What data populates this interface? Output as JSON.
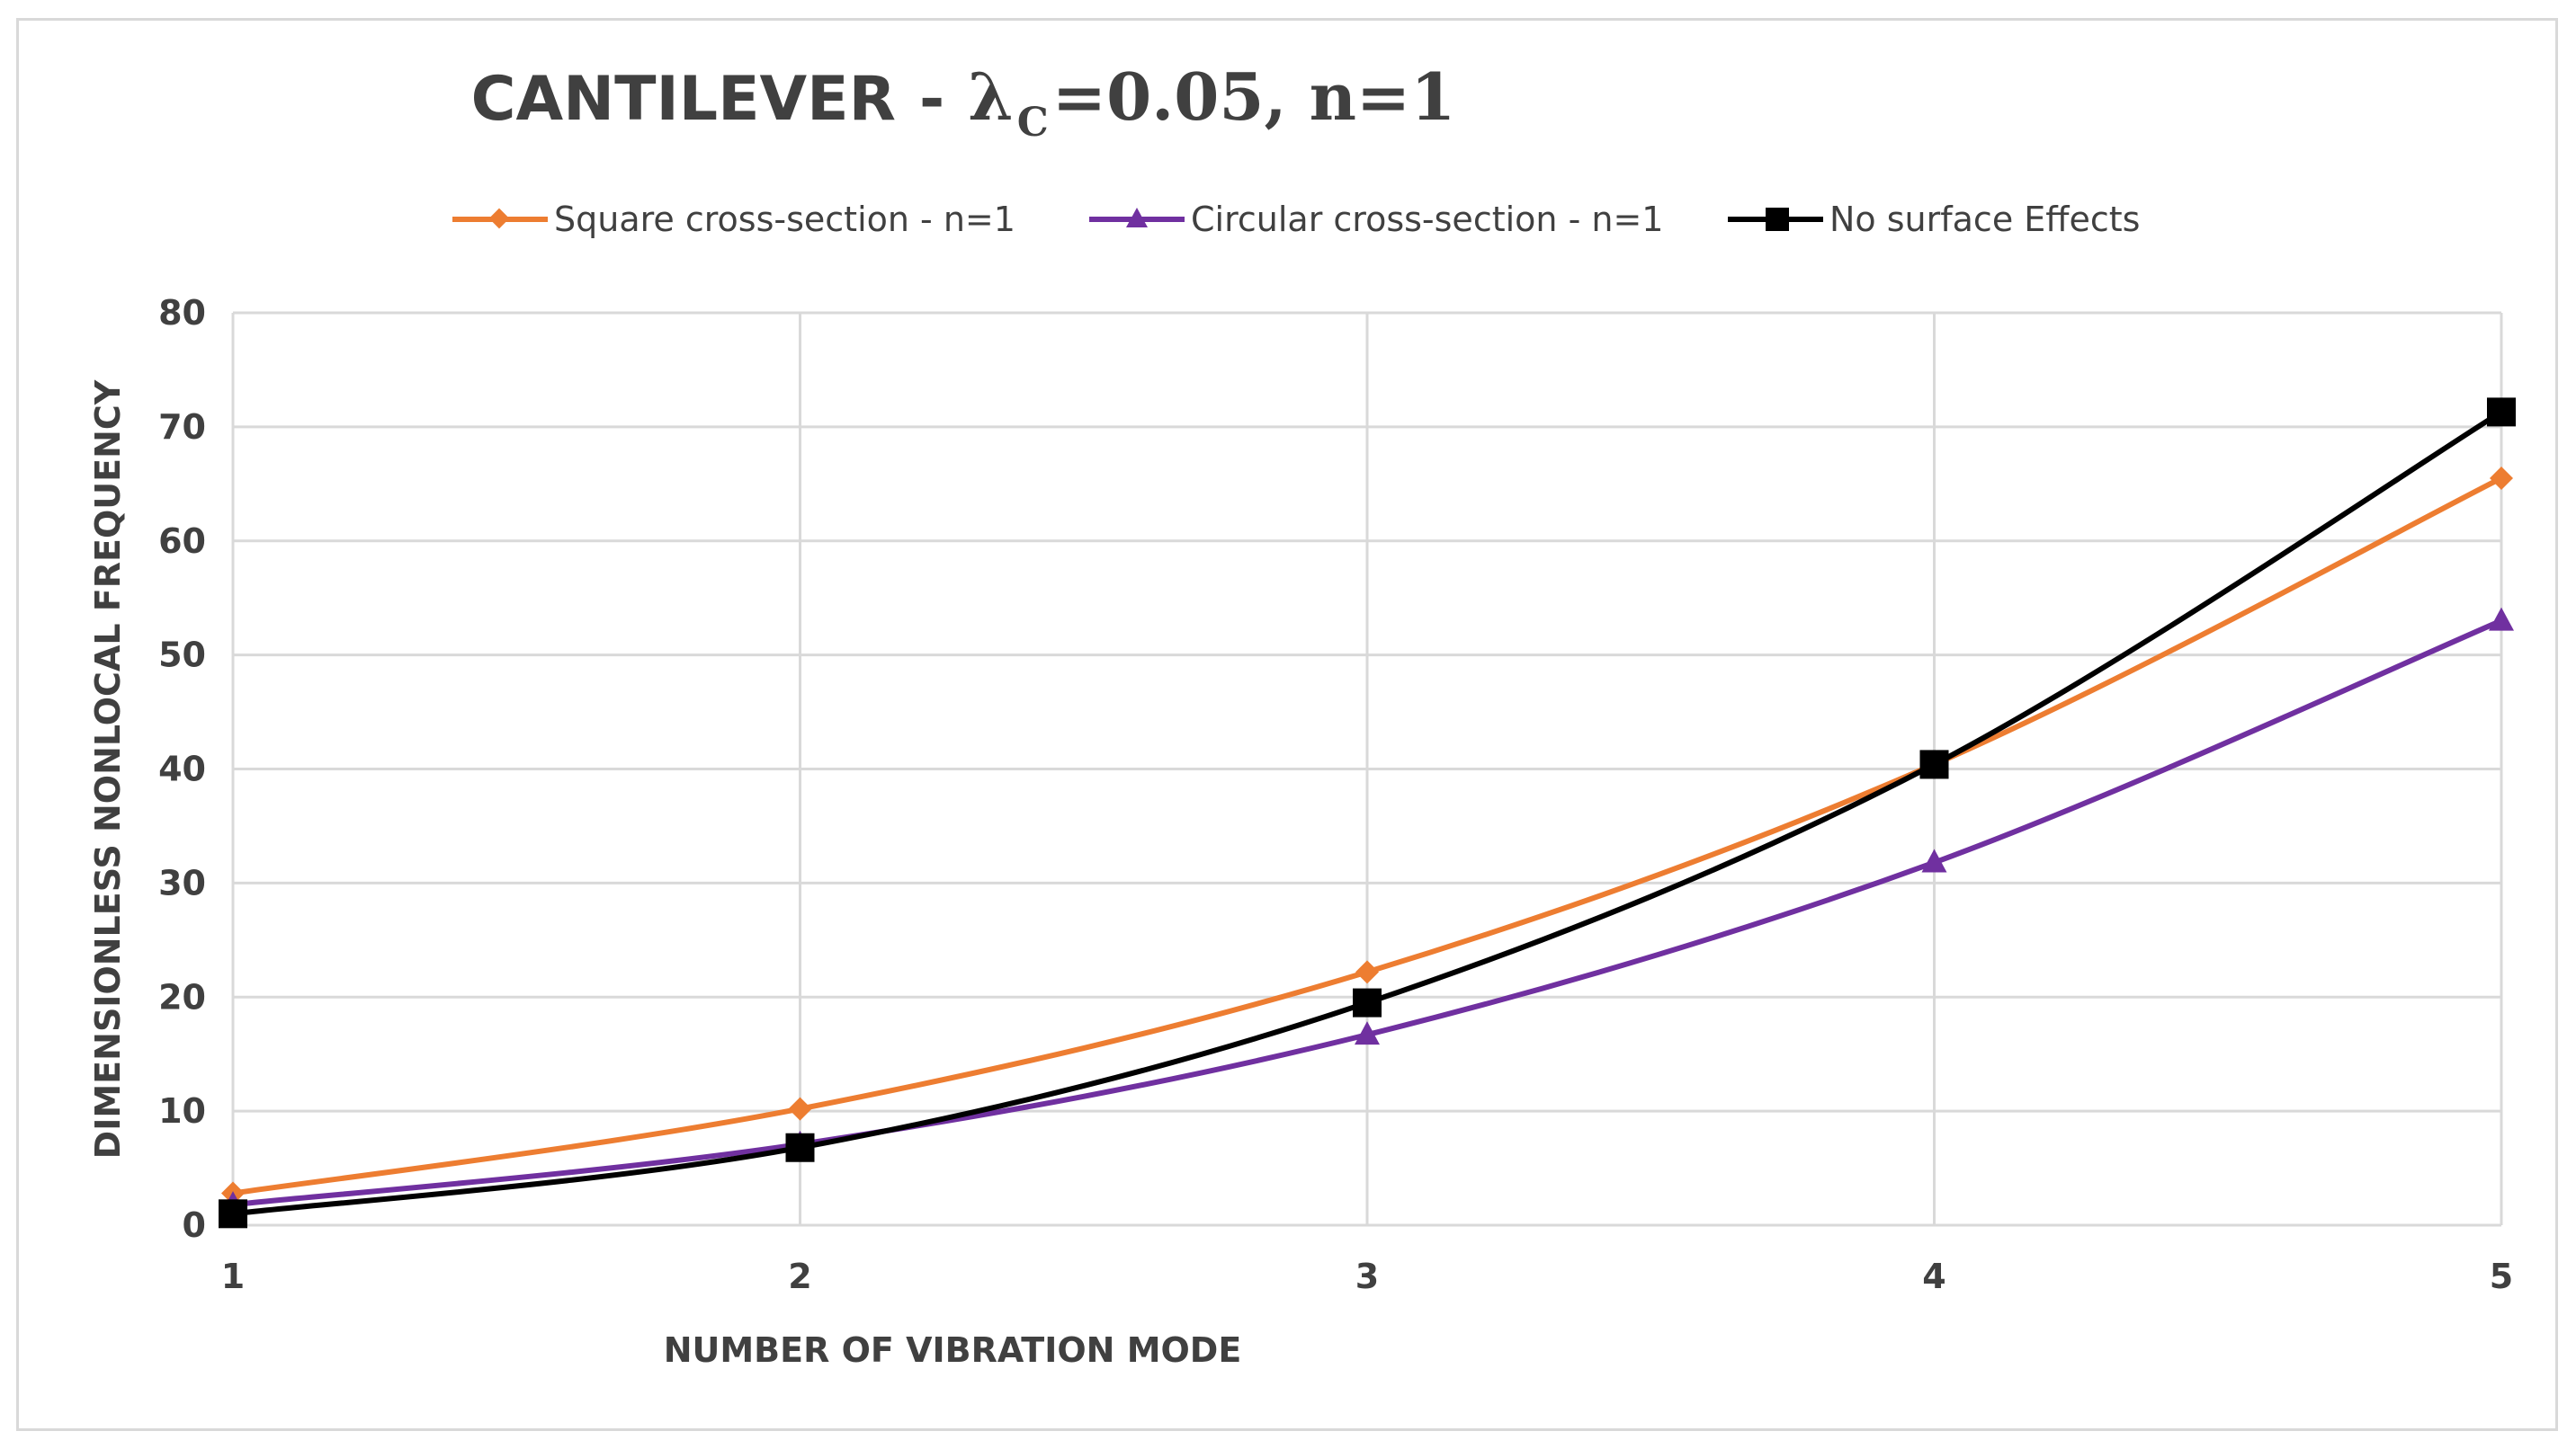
{
  "chart_data": {
    "type": "line",
    "title": {
      "prefix": "CANTILEVER",
      "dash": "-",
      "lambda": "λ",
      "subscript": "C",
      "rest": "=0.05, n=1"
    },
    "xlabel": "NUMBER OF VIBRATION MODE",
    "ylabel": "DIMENSIONLESS NONLOCAL FREQUENCY",
    "x": [
      1,
      2,
      3,
      4,
      5
    ],
    "x_ticks": [
      "1",
      "2",
      "3",
      "4",
      "5"
    ],
    "y_ticks": [
      "0",
      "10",
      "20",
      "30",
      "40",
      "50",
      "60",
      "70",
      "80"
    ],
    "ylim": [
      0,
      80
    ],
    "xlim": [
      1,
      5
    ],
    "grid": true,
    "legend_position": "top",
    "series": [
      {
        "name": "Square cross-section - n=1",
        "values": [
          2.8,
          10.2,
          22.2,
          40.4,
          65.5
        ],
        "color": "#ed7d31",
        "marker": "diamond"
      },
      {
        "name": "Circular cross-section - n=1",
        "values": [
          1.8,
          7.1,
          16.7,
          31.8,
          53.0
        ],
        "color": "#7030a0",
        "marker": "triangle"
      },
      {
        "name": "No surface Effects",
        "values": [
          1.0,
          6.8,
          19.5,
          40.4,
          71.3
        ],
        "color": "#000000",
        "marker": "square"
      }
    ]
  }
}
